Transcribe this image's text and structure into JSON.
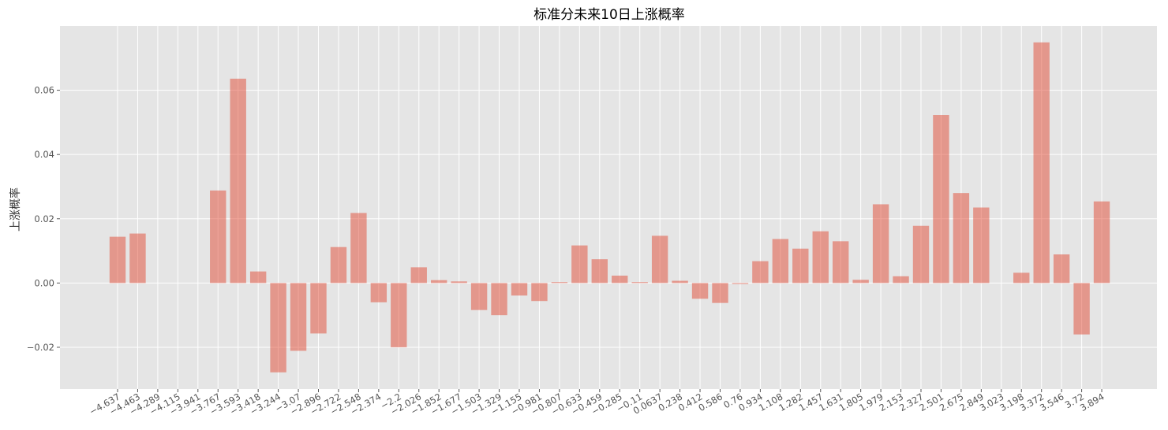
{
  "chart_data": {
    "type": "bar",
    "title": "标准分未来10日上涨概率",
    "xlabel": "",
    "ylabel": "上涨概率",
    "ylim": [
      -0.033,
      0.08
    ],
    "yticks": [
      -0.02,
      0.0,
      0.02,
      0.04,
      0.06
    ],
    "ytick_labels": [
      "−0.02",
      "0.00",
      "0.02",
      "0.04",
      "0.06"
    ],
    "grid": true,
    "bar_color": "#E24A33",
    "background_color": "#E5E5E5",
    "categories": [
      "−4.637",
      "−4.463",
      "−4.289",
      "−4.115",
      "−3.941",
      "−3.767",
      "−3.593",
      "−3.418",
      "−3.244",
      "−3.07",
      "−2.896",
      "−2.722",
      "−2.548",
      "−2.374",
      "−2.2",
      "−2.026",
      "−1.852",
      "−1.677",
      "−1.503",
      "−1.329",
      "−1.155",
      "−0.981",
      "−0.807",
      "−0.633",
      "−0.459",
      "−0.285",
      "−0.11",
      "0.0637",
      "0.238",
      "0.412",
      "0.586",
      "0.76",
      "0.934",
      "1.108",
      "1.282",
      "1.457",
      "1.631",
      "1.805",
      "1.979",
      "2.153",
      "2.327",
      "2.501",
      "2.675",
      "2.849",
      "3.023",
      "3.198",
      "3.372",
      "3.546",
      "3.72",
      "3.894"
    ],
    "values": [
      0.0144,
      0.0154,
      0.0,
      0.0,
      0.0,
      0.0288,
      0.0636,
      0.0036,
      -0.0278,
      -0.0211,
      -0.0157,
      0.0112,
      0.0218,
      -0.006,
      -0.02,
      0.0049,
      0.0009,
      0.0005,
      -0.0084,
      -0.01,
      -0.0039,
      -0.0056,
      0.0003,
      0.0117,
      0.0074,
      0.0023,
      0.0003,
      0.0147,
      0.0007,
      -0.0049,
      -0.0062,
      -0.0003,
      0.0068,
      0.0137,
      0.0107,
      0.0161,
      0.013,
      0.001,
      0.0245,
      0.0021,
      0.0178,
      0.0523,
      0.028,
      0.0235,
      0.0,
      0.0032,
      0.0749,
      0.0089,
      -0.016,
      0.0254
    ]
  }
}
